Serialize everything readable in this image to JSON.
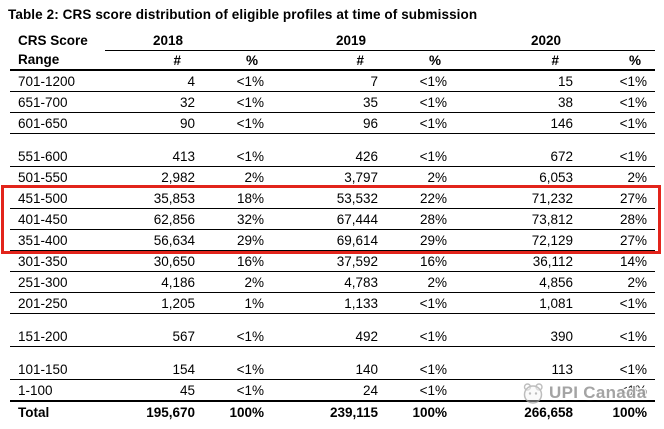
{
  "title": "Table 2: CRS score distribution of eligible profiles at time of submission",
  "table": {
    "header": {
      "range_line1": "CRS Score",
      "range_line2": "Range",
      "years": [
        "2018",
        "2019",
        "2020"
      ],
      "count": "#",
      "percent": "%"
    },
    "rows": [
      {
        "r": "701-1200",
        "n1": "4",
        "p1": "<1%",
        "n2": "7",
        "p2": "<1%",
        "n3": "15",
        "p3": "<1%"
      },
      {
        "r": "651-700",
        "n1": "32",
        "p1": "<1%",
        "n2": "35",
        "p2": "<1%",
        "n3": "38",
        "p3": "<1%"
      },
      {
        "r": "601-650",
        "n1": "90",
        "p1": "<1%",
        "n2": "96",
        "p2": "<1%",
        "n3": "146",
        "p3": "<1%"
      },
      {
        "r": "551-600",
        "n1": "413",
        "p1": "<1%",
        "n2": "426",
        "p2": "<1%",
        "n3": "672",
        "p3": "<1%"
      },
      {
        "r": "501-550",
        "n1": "2,982",
        "p1": "2%",
        "n2": "3,797",
        "p2": "2%",
        "n3": "6,053",
        "p3": "2%"
      },
      {
        "r": "451-500",
        "n1": "35,853",
        "p1": "18%",
        "n2": "53,532",
        "p2": "22%",
        "n3": "71,232",
        "p3": "27%"
      },
      {
        "r": "401-450",
        "n1": "62,856",
        "p1": "32%",
        "n2": "67,444",
        "p2": "28%",
        "n3": "73,812",
        "p3": "28%"
      },
      {
        "r": "351-400",
        "n1": "56,634",
        "p1": "29%",
        "n2": "69,614",
        "p2": "29%",
        "n3": "72,129",
        "p3": "27%"
      },
      {
        "r": "301-350",
        "n1": "30,650",
        "p1": "16%",
        "n2": "37,592",
        "p2": "16%",
        "n3": "36,112",
        "p3": "14%"
      },
      {
        "r": "251-300",
        "n1": "4,186",
        "p1": "2%",
        "n2": "4,783",
        "p2": "2%",
        "n3": "4,856",
        "p3": "2%"
      },
      {
        "r": "201-250",
        "n1": "1,205",
        "p1": "1%",
        "n2": "1,133",
        "p2": "<1%",
        "n3": "1,081",
        "p3": "<1%"
      },
      {
        "r": "151-200",
        "n1": "567",
        "p1": "<1%",
        "n2": "492",
        "p2": "<1%",
        "n3": "390",
        "p3": "<1%"
      },
      {
        "r": "101-150",
        "n1": "154",
        "p1": "<1%",
        "n2": "140",
        "p2": "<1%",
        "n3": "113",
        "p3": "<1%"
      },
      {
        "r": "1-100",
        "n1": "45",
        "p1": "<1%",
        "n2": "24",
        "p2": "<1%",
        "n3": "",
        "p3": "<1%"
      }
    ],
    "total": {
      "r": "Total",
      "n1": "195,670",
      "p1": "100%",
      "n2": "239,115",
      "p2": "100%",
      "n3": "266,658",
      "p3": "100%"
    }
  },
  "highlight": {
    "color": "#e2241b",
    "highlighted_ranges": [
      "451-500",
      "401-450",
      "351-400"
    ]
  },
  "watermark": {
    "text": "UPI Canada"
  }
}
